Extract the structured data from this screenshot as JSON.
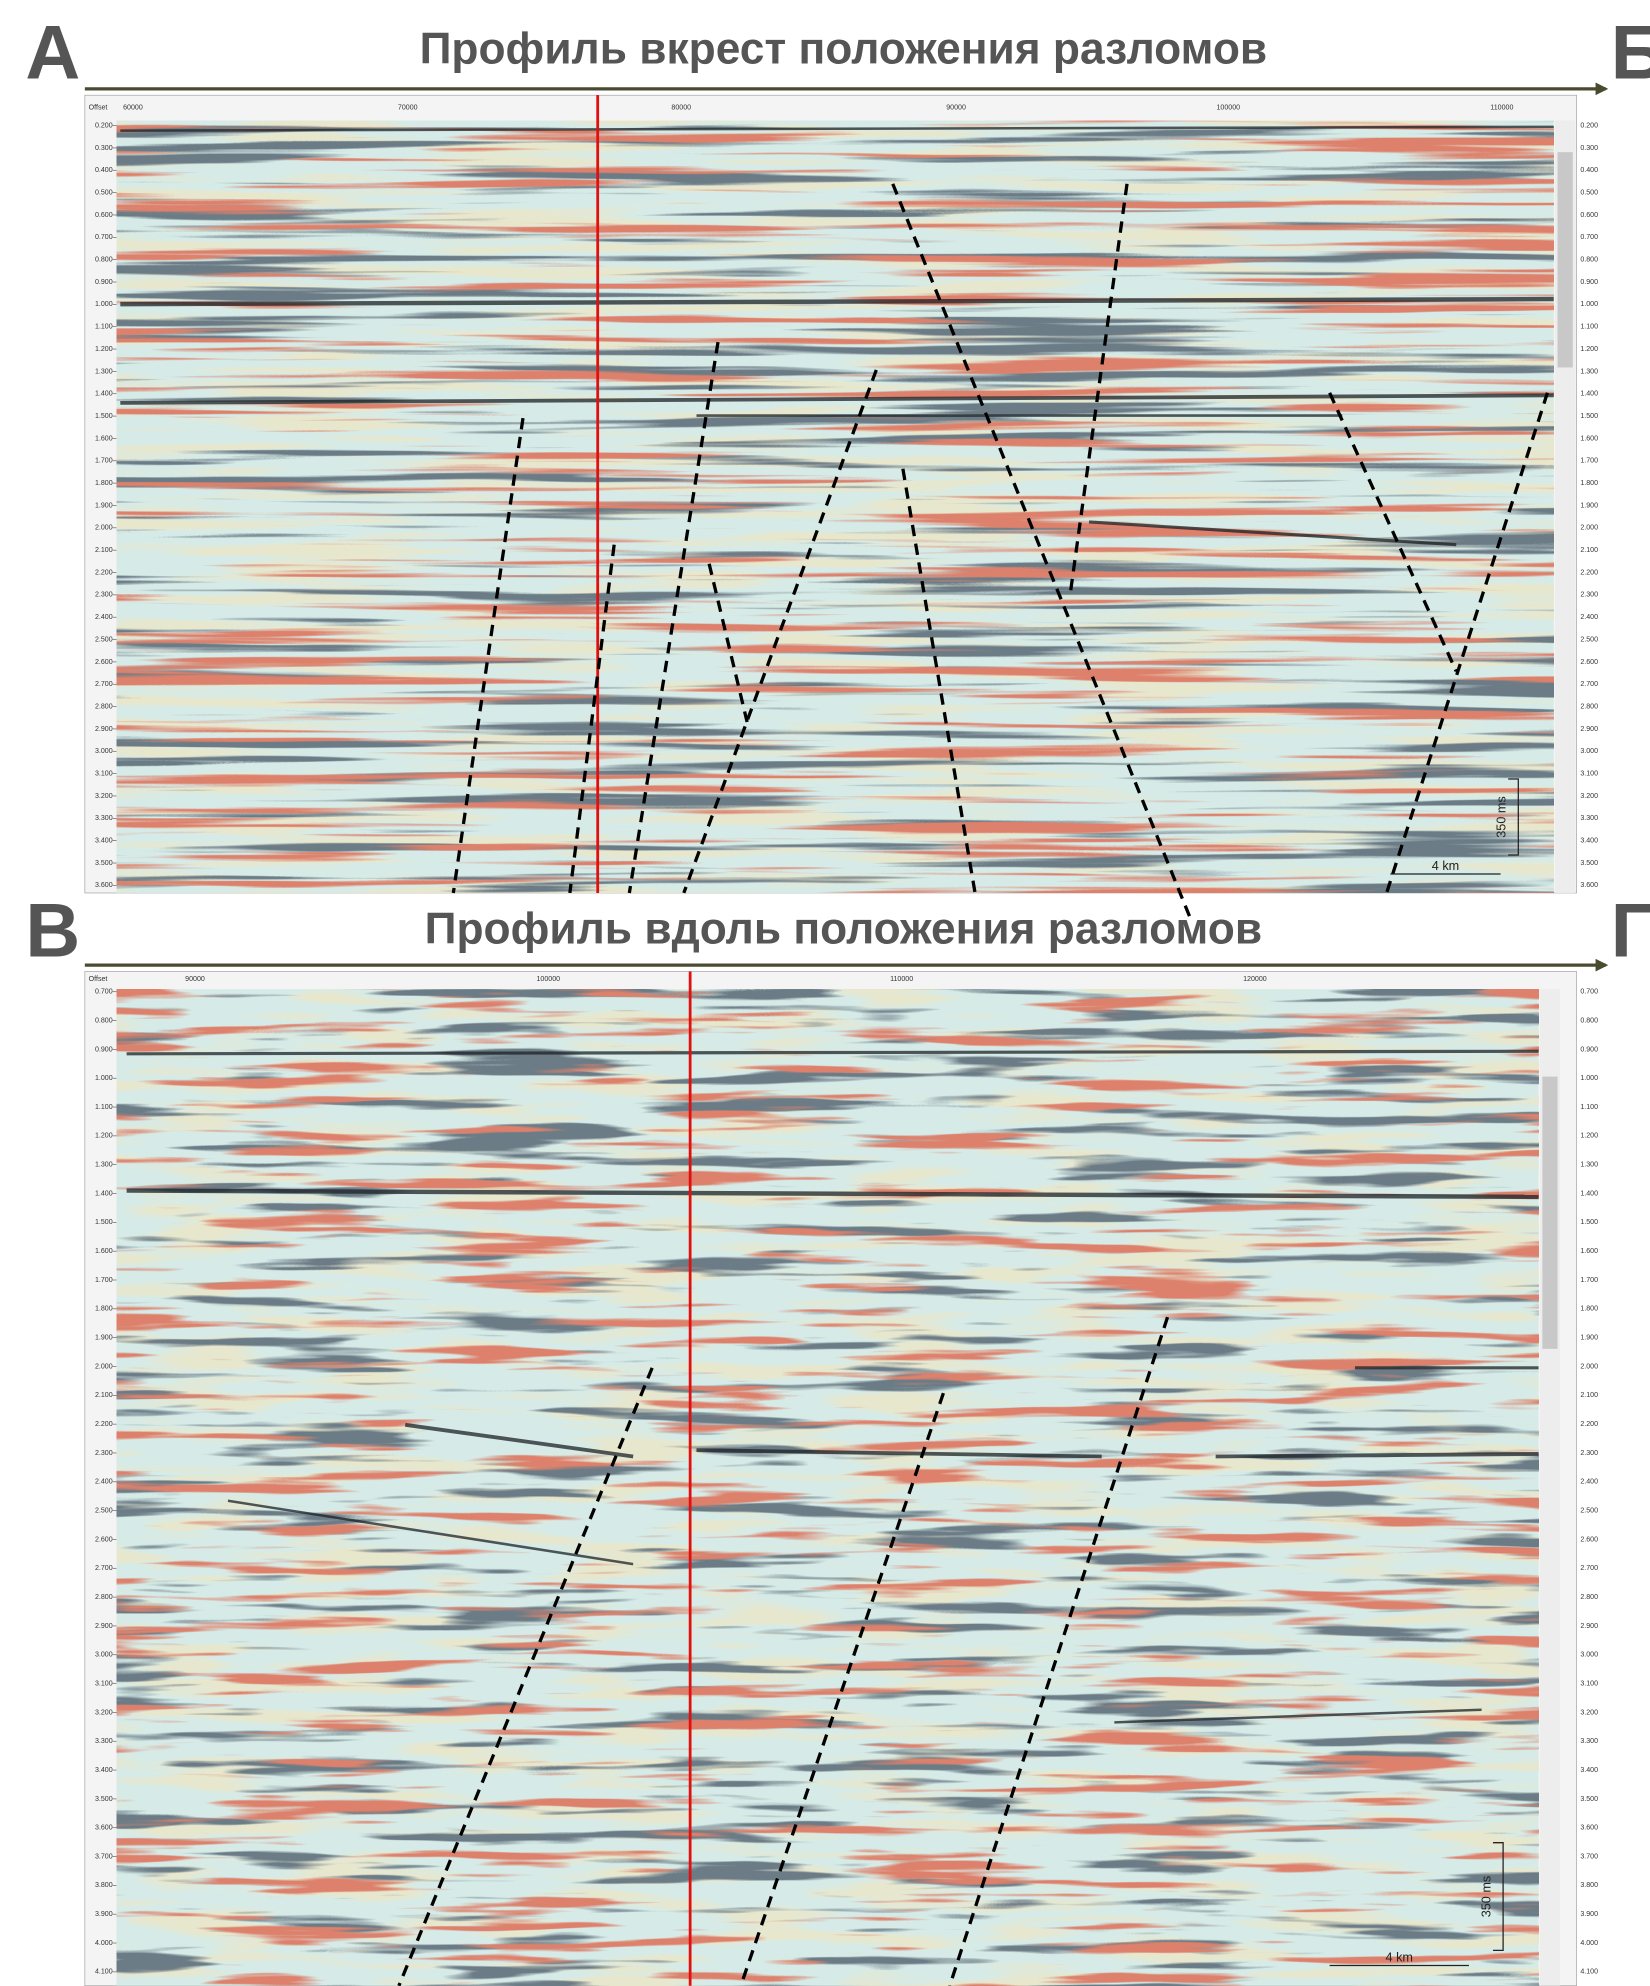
{
  "panels": [
    {
      "corner_left": "А",
      "corner_right": "Б",
      "title": "Профиль вкрест положения разломов",
      "offset_label": "Offset",
      "offsets": [
        "60000",
        "70000",
        "80000",
        "90000",
        "100000",
        "110000"
      ],
      "times": [
        "0.200",
        "0.300",
        "0.400",
        "0.500",
        "0.600",
        "0.700",
        "0.800",
        "0.900",
        "1.000",
        "1.100",
        "1.200",
        "1.300",
        "1.400",
        "1.500",
        "1.600",
        "1.700",
        "1.800",
        "1.900",
        "2.000",
        "2.100",
        "2.200",
        "2.300",
        "2.400",
        "2.500",
        "2.600",
        "2.700",
        "2.800",
        "2.900",
        "3.000",
        "3.100",
        "3.200",
        "3.300",
        "3.400",
        "3.500",
        "3.600"
      ],
      "scale_time": "350 ms",
      "scale_distance": "4 km"
    },
    {
      "corner_left": "В",
      "corner_right": "Г",
      "title": "Профиль вдоль положения разломов",
      "offset_label": "Offset",
      "offsets": [
        "90000",
        "100000",
        "110000",
        "120000"
      ],
      "times": [
        "0.700",
        "0.800",
        "0.900",
        "1.000",
        "1.100",
        "1.200",
        "1.300",
        "1.400",
        "1.500",
        "1.600",
        "1.700",
        "1.800",
        "1.900",
        "2.000",
        "2.100",
        "2.200",
        "2.300",
        "2.400",
        "2.500",
        "2.600",
        "2.700",
        "2.800",
        "2.900",
        "3.000",
        "3.100",
        "3.200",
        "3.300",
        "3.400",
        "3.500",
        "3.600",
        "3.700",
        "3.800",
        "3.900",
        "4.000",
        "4.100"
      ],
      "scale_time": "350 ms",
      "scale_distance": "4 km"
    }
  ]
}
